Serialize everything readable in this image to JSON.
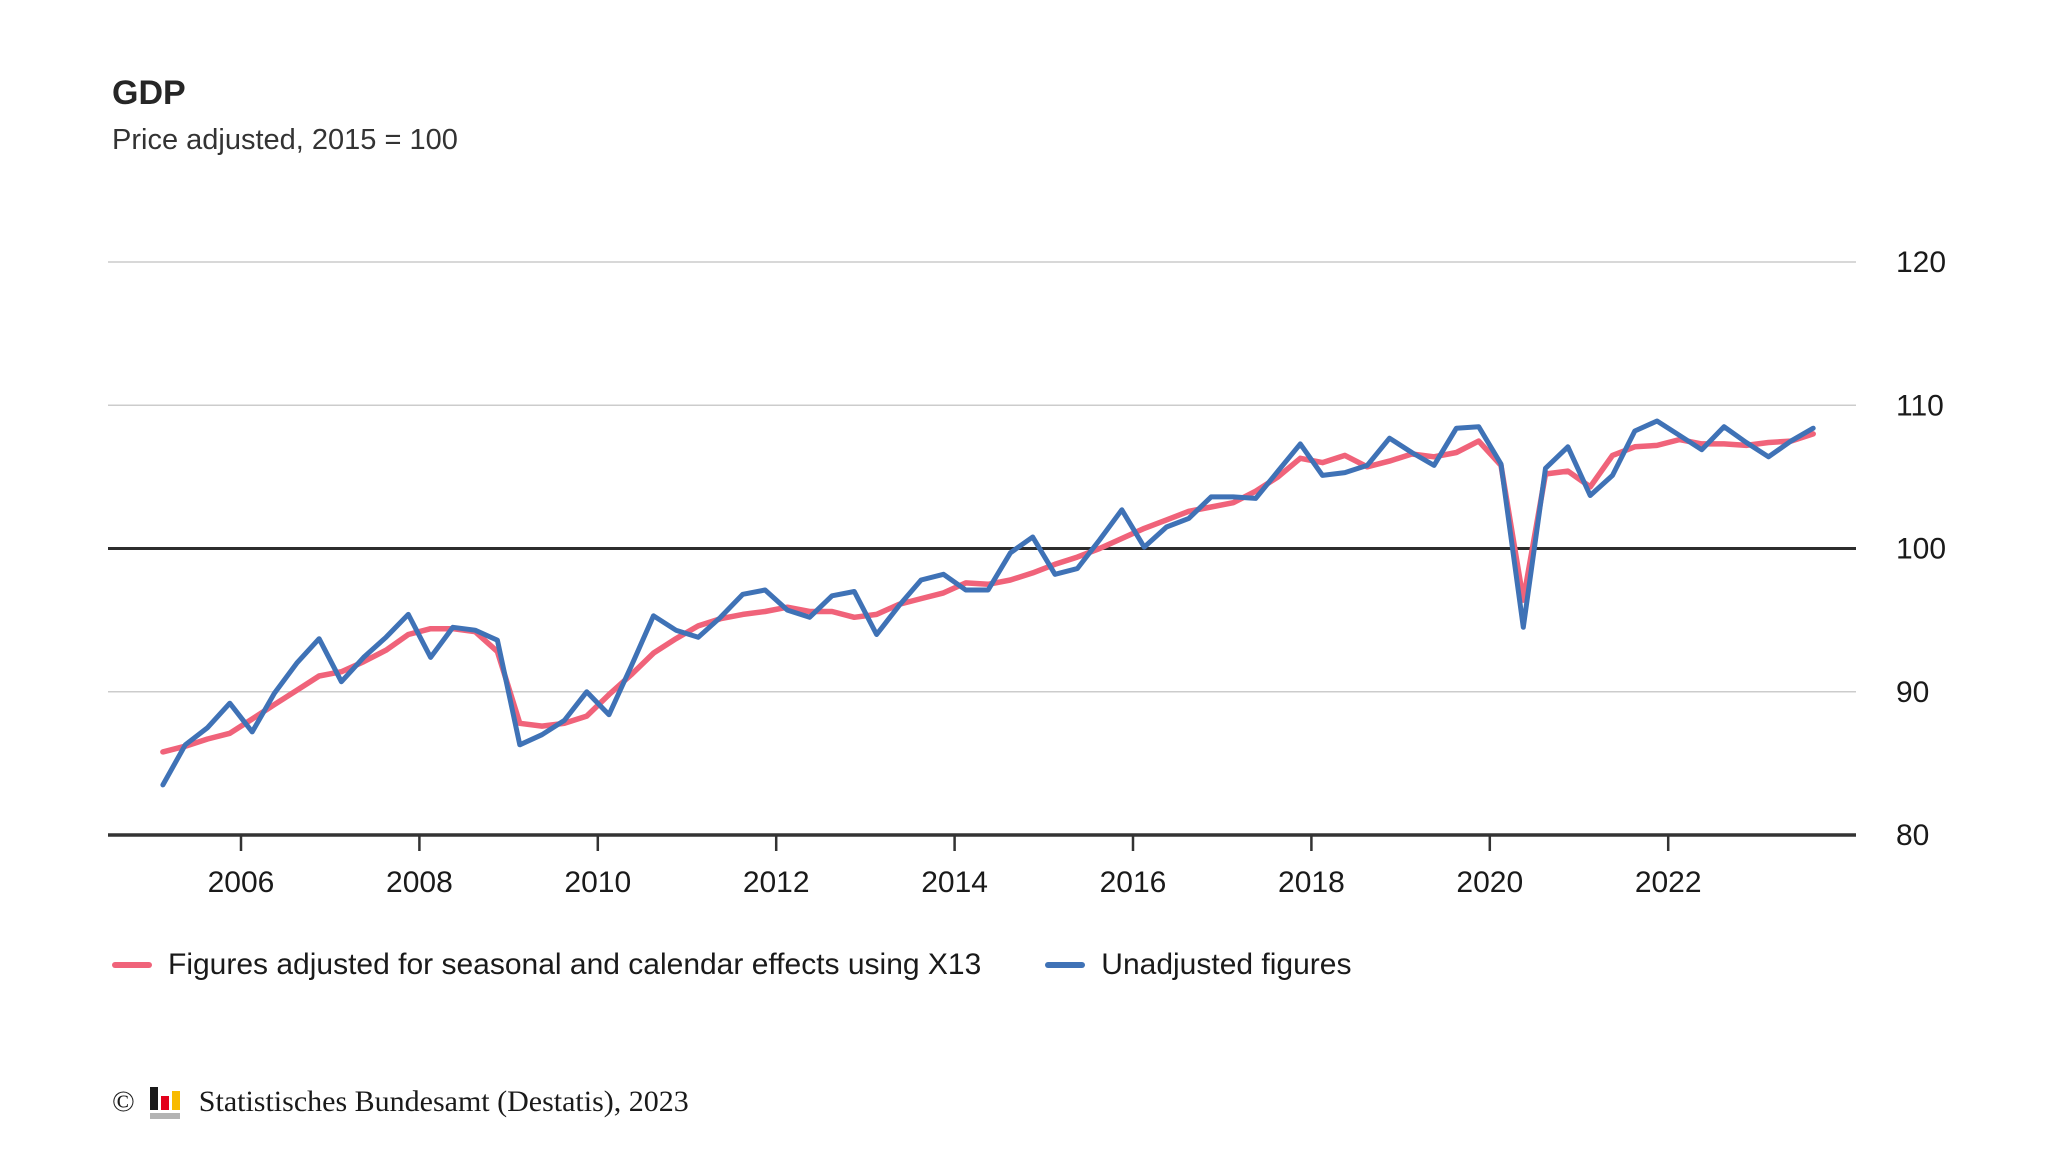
{
  "header": {
    "title": "GDP",
    "subtitle": "Price adjusted, 2015 = 100"
  },
  "legend": [
    {
      "label": "Figures adjusted for seasonal and calendar effects using X13",
      "color": "#f0637a"
    },
    {
      "label": "Unadjusted figures",
      "color": "#3f72b6"
    }
  ],
  "footer": {
    "copyright_symbol": "©",
    "source": "Statistisches Bundesamt (Destatis), 2023",
    "icon": "destatis-bar-chart-icon",
    "icon_colors": {
      "black": "#1a1a1a",
      "red": "#e3001b",
      "gold": "#f8bb00",
      "gray": "#b3b3b3"
    }
  },
  "chart_data": {
    "type": "line",
    "title": "GDP",
    "subtitle": "Price adjusted, 2015 = 100",
    "x_unit": "quarter",
    "quarters": [
      "2005-Q1",
      "2005-Q2",
      "2005-Q3",
      "2005-Q4",
      "2006-Q1",
      "2006-Q2",
      "2006-Q3",
      "2006-Q4",
      "2007-Q1",
      "2007-Q2",
      "2007-Q3",
      "2007-Q4",
      "2008-Q1",
      "2008-Q2",
      "2008-Q3",
      "2008-Q4",
      "2009-Q1",
      "2009-Q2",
      "2009-Q3",
      "2009-Q4",
      "2010-Q1",
      "2010-Q2",
      "2010-Q3",
      "2010-Q4",
      "2011-Q1",
      "2011-Q2",
      "2011-Q3",
      "2011-Q4",
      "2012-Q1",
      "2012-Q2",
      "2012-Q3",
      "2012-Q4",
      "2013-Q1",
      "2013-Q2",
      "2013-Q3",
      "2013-Q4",
      "2014-Q1",
      "2014-Q2",
      "2014-Q3",
      "2014-Q4",
      "2015-Q1",
      "2015-Q2",
      "2015-Q3",
      "2015-Q4",
      "2016-Q1",
      "2016-Q2",
      "2016-Q3",
      "2016-Q4",
      "2017-Q1",
      "2017-Q2",
      "2017-Q3",
      "2017-Q4",
      "2018-Q1",
      "2018-Q2",
      "2018-Q3",
      "2018-Q4",
      "2019-Q1",
      "2019-Q2",
      "2019-Q3",
      "2019-Q4",
      "2020-Q1",
      "2020-Q2",
      "2020-Q3",
      "2020-Q4",
      "2021-Q1",
      "2021-Q2",
      "2021-Q3",
      "2021-Q4",
      "2022-Q1",
      "2022-Q2",
      "2022-Q3",
      "2022-Q4",
      "2023-Q1",
      "2023-Q2",
      "2023-Q3"
    ],
    "series": [
      {
        "name": "Figures adjusted for seasonal and calendar effects using X13",
        "color": "#f0637a",
        "stroke_width": 5.5,
        "values": [
          85.8,
          86.2,
          86.7,
          87.1,
          88.1,
          89.1,
          90.1,
          91.1,
          91.4,
          92.1,
          92.9,
          94.0,
          94.4,
          94.4,
          94.2,
          92.8,
          87.8,
          87.6,
          87.8,
          88.3,
          89.8,
          91.2,
          92.7,
          93.7,
          94.6,
          95.1,
          95.4,
          95.6,
          95.9,
          95.6,
          95.6,
          95.2,
          95.4,
          96.1,
          96.5,
          96.9,
          97.6,
          97.5,
          97.8,
          98.3,
          98.9,
          99.4,
          100.0,
          100.7,
          101.4,
          102.0,
          102.6,
          102.9,
          103.2,
          104.0,
          105.0,
          106.3,
          106.0,
          106.5,
          105.7,
          106.1,
          106.6,
          106.4,
          106.7,
          107.5,
          105.8,
          96.4,
          105.2,
          105.4,
          104.3,
          106.5,
          107.1,
          107.2,
          107.6,
          107.3,
          107.3,
          107.2,
          107.4,
          107.5,
          108.0
        ]
      },
      {
        "name": "Unadjusted figures",
        "color": "#3f72b6",
        "stroke_width": 5,
        "values": [
          83.5,
          86.3,
          87.5,
          89.2,
          87.2,
          89.9,
          92.0,
          93.7,
          90.7,
          92.4,
          93.8,
          95.4,
          92.4,
          94.5,
          94.3,
          93.6,
          86.3,
          87.0,
          88.0,
          90.0,
          88.4,
          91.8,
          95.3,
          94.3,
          93.8,
          95.2,
          96.8,
          97.1,
          95.7,
          95.2,
          96.7,
          97.0,
          94.0,
          96.0,
          97.8,
          98.2,
          97.1,
          97.1,
          99.7,
          100.8,
          98.2,
          98.6,
          100.6,
          102.7,
          100.1,
          101.5,
          102.1,
          103.6,
          103.6,
          103.5,
          105.4,
          107.3,
          105.1,
          105.3,
          105.8,
          107.7,
          106.7,
          105.8,
          108.4,
          108.5,
          105.9,
          94.5,
          105.6,
          107.1,
          103.7,
          105.1,
          108.2,
          108.9,
          107.9,
          106.9,
          108.5,
          107.4,
          106.4,
          107.5,
          108.4
        ]
      }
    ],
    "y_axis": {
      "ticks": [
        120,
        110,
        100,
        90,
        80
      ],
      "range": [
        80,
        124.5
      ],
      "baseline_value": 100,
      "labels_side": "right",
      "grid": true
    },
    "x_axis": {
      "tick_years": [
        2006,
        2008,
        2010,
        2012,
        2014,
        2016,
        2018,
        2020,
        2022
      ],
      "range_years": [
        2004.9,
        2024.1
      ]
    },
    "legend_position": "bottom",
    "colors": {
      "adjusted": "#f0637a",
      "unadjusted": "#3f72b6",
      "grid": "#cccccc",
      "baseline": "#2d2d2d",
      "axis": "#333333"
    }
  }
}
